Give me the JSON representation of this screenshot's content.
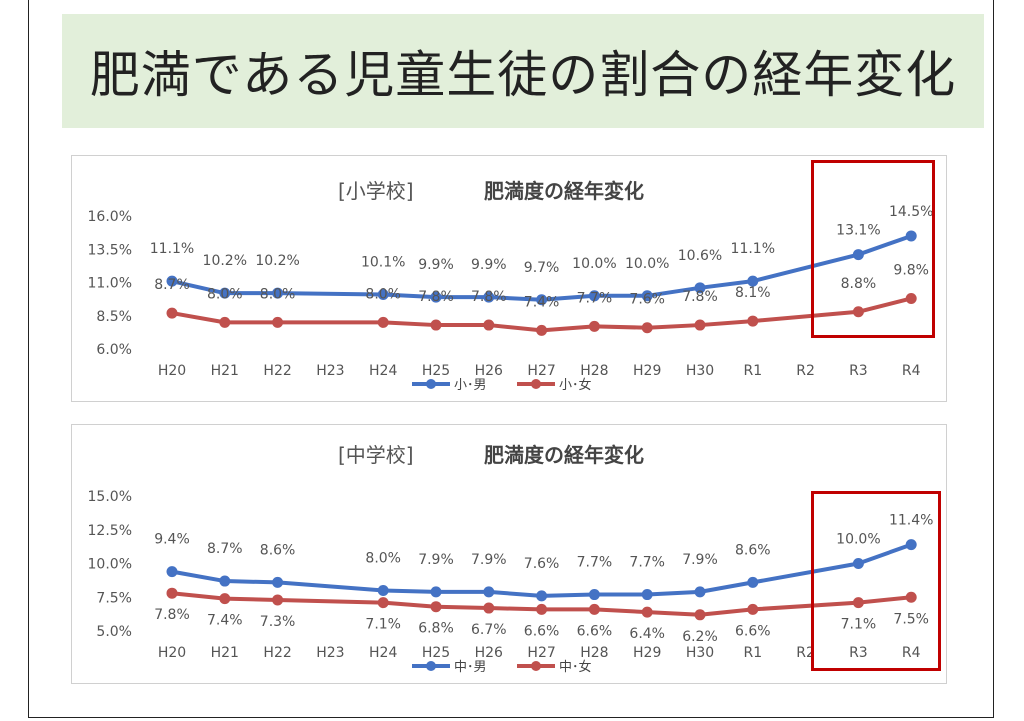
{
  "page_title": "肥満である児童生徒の割合の経年変化",
  "colors": {
    "boys": "#4472c4",
    "girls": "#c0504d",
    "highlight": "#c00000",
    "band": "#e2efda"
  },
  "chart_data": [
    {
      "type": "line",
      "title_bracket": "[小学校]",
      "title_main": "肥満度の経年変化",
      "categories": [
        "H20",
        "H21",
        "H22",
        "H23",
        "H24",
        "H25",
        "H26",
        "H27",
        "H28",
        "H29",
        "H30",
        "R1",
        "R2",
        "R3",
        "R4"
      ],
      "ylim": [
        6.0,
        16.0
      ],
      "yticks": [
        "16.0%",
        "13.5%",
        "11.0%",
        "8.5%",
        "6.0%"
      ],
      "ytick_values": [
        16.0,
        13.5,
        11.0,
        8.5,
        6.0
      ],
      "grid": false,
      "legend": "bottom",
      "series": [
        {
          "name": "小･男",
          "color": "#4472c4",
          "values": [
            11.1,
            10.2,
            10.2,
            null,
            10.1,
            9.9,
            9.9,
            9.7,
            10.0,
            10.0,
            10.6,
            11.1,
            null,
            13.1,
            14.5
          ],
          "labels": [
            "11.1%",
            "10.2%",
            "10.2%",
            null,
            "10.1%",
            "9.9%",
            "9.9%",
            "9.7%",
            "10.0%",
            "10.0%",
            "10.6%",
            "11.1%",
            null,
            "13.1%",
            "14.5%"
          ]
        },
        {
          "name": "小･女",
          "color": "#c0504d",
          "values": [
            8.7,
            8.0,
            8.0,
            null,
            8.0,
            7.8,
            7.8,
            7.4,
            7.7,
            7.6,
            7.8,
            8.1,
            null,
            8.8,
            9.8
          ],
          "labels": [
            "8.7%",
            "8.0%",
            "8.0%",
            null,
            "8.0%",
            "7.8%",
            "7.8%",
            "7.4%",
            "7.7%",
            "7.6%",
            "7.8%",
            "8.1%",
            null,
            "8.8%",
            "9.8%"
          ]
        }
      ]
    },
    {
      "type": "line",
      "title_bracket": "[中学校]",
      "title_main": "肥満度の経年変化",
      "categories": [
        "H20",
        "H21",
        "H22",
        "H23",
        "H24",
        "H25",
        "H26",
        "H27",
        "H28",
        "H29",
        "H30",
        "R1",
        "R2",
        "R3",
        "R4"
      ],
      "ylim": [
        5.0,
        15.0
      ],
      "yticks": [
        "15.0%",
        "12.5%",
        "10.0%",
        "7.5%",
        "5.0%"
      ],
      "ytick_values": [
        15.0,
        12.5,
        10.0,
        7.5,
        5.0
      ],
      "grid": false,
      "legend": "bottom",
      "series": [
        {
          "name": "中･男",
          "color": "#4472c4",
          "values": [
            9.4,
            8.7,
            8.6,
            null,
            8.0,
            7.9,
            7.9,
            7.6,
            7.7,
            7.7,
            7.9,
            8.6,
            null,
            10.0,
            11.4
          ],
          "labels": [
            "9.4%",
            "8.7%",
            "8.6%",
            null,
            "8.0%",
            "7.9%",
            "7.9%",
            "7.6%",
            "7.7%",
            "7.7%",
            "7.9%",
            "8.6%",
            null,
            "10.0%",
            "11.4%"
          ]
        },
        {
          "name": "中･女",
          "color": "#c0504d",
          "values": [
            7.8,
            7.4,
            7.3,
            null,
            7.1,
            6.8,
            6.7,
            6.6,
            6.6,
            6.4,
            6.2,
            6.6,
            null,
            7.1,
            7.5
          ],
          "labels": [
            "7.8%",
            "7.4%",
            "7.3%",
            null,
            "7.1%",
            "6.8%",
            "6.7%",
            "6.6%",
            "6.6%",
            "6.4%",
            "6.2%",
            "6.6%",
            null,
            "7.1%",
            "7.5%"
          ]
        }
      ]
    }
  ]
}
